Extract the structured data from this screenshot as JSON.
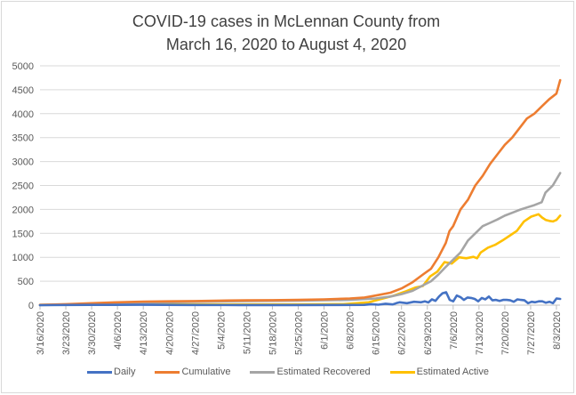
{
  "chart_data": {
    "type": "line",
    "title": [
      "COVID-19 cases in McLennan County from",
      "March 16, 2020 to August 4, 2020"
    ],
    "xlabel": "",
    "ylabel": "",
    "ylim": [
      0,
      5000
    ],
    "yticks": [
      0,
      500,
      1000,
      1500,
      2000,
      2500,
      3000,
      3500,
      4000,
      4500,
      5000
    ],
    "x_start": "3/16/2020",
    "x_end": "8/4/2020",
    "x_days": 141,
    "xtick_labels": [
      "3/16/2020",
      "3/23/2020",
      "3/30/2020",
      "4/6/2020",
      "4/13/2020",
      "4/20/2020",
      "4/27/2020",
      "5/4/2020",
      "5/11/2020",
      "5/18/2020",
      "5/25/2020",
      "6/1/2020",
      "6/8/2020",
      "6/15/2020",
      "6/22/2020",
      "6/29/2020",
      "7/6/2020",
      "7/13/2020",
      "7/20/2020",
      "7/27/2020",
      "8/3/2020"
    ],
    "grid": true,
    "legend_position": "bottom",
    "series": [
      {
        "name": "Daily",
        "color": "#4472c4",
        "points": [
          [
            0,
            0
          ],
          [
            14,
            5
          ],
          [
            28,
            8
          ],
          [
            42,
            3
          ],
          [
            56,
            2
          ],
          [
            70,
            2
          ],
          [
            84,
            4
          ],
          [
            91,
            6
          ],
          [
            93,
            20
          ],
          [
            95,
            10
          ],
          [
            97,
            30
          ],
          [
            99,
            15
          ],
          [
            100,
            40
          ],
          [
            101,
            60
          ],
          [
            103,
            40
          ],
          [
            105,
            70
          ],
          [
            107,
            60
          ],
          [
            108,
            80
          ],
          [
            109,
            55
          ],
          [
            110,
            120
          ],
          [
            111,
            90
          ],
          [
            112,
            180
          ],
          [
            113,
            250
          ],
          [
            114,
            270
          ],
          [
            115,
            110
          ],
          [
            116,
            80
          ],
          [
            117,
            200
          ],
          [
            118,
            170
          ],
          [
            119,
            110
          ],
          [
            120,
            160
          ],
          [
            121,
            150
          ],
          [
            122,
            130
          ],
          [
            123,
            80
          ],
          [
            124,
            150
          ],
          [
            125,
            120
          ],
          [
            126,
            180
          ],
          [
            127,
            100
          ],
          [
            128,
            110
          ],
          [
            129,
            90
          ],
          [
            130,
            110
          ],
          [
            131,
            110
          ],
          [
            132,
            100
          ],
          [
            133,
            70
          ],
          [
            134,
            120
          ],
          [
            135,
            110
          ],
          [
            136,
            100
          ],
          [
            137,
            40
          ],
          [
            138,
            70
          ],
          [
            139,
            60
          ],
          [
            140,
            80
          ],
          [
            141,
            80
          ],
          [
            142,
            50
          ],
          [
            143,
            70
          ],
          [
            144,
            40
          ],
          [
            145,
            140
          ],
          [
            146,
            130
          ]
        ]
      },
      {
        "name": "Cumulative",
        "color": "#ed7d31",
        "points": [
          [
            0,
            5
          ],
          [
            7,
            20
          ],
          [
            14,
            40
          ],
          [
            21,
            60
          ],
          [
            28,
            75
          ],
          [
            35,
            80
          ],
          [
            42,
            85
          ],
          [
            49,
            95
          ],
          [
            56,
            100
          ],
          [
            63,
            105
          ],
          [
            70,
            110
          ],
          [
            77,
            120
          ],
          [
            84,
            140
          ],
          [
            88,
            160
          ],
          [
            91,
            200
          ],
          [
            95,
            260
          ],
          [
            98,
            350
          ],
          [
            101,
            480
          ],
          [
            104,
            650
          ],
          [
            106,
            760
          ],
          [
            108,
            1000
          ],
          [
            110,
            1300
          ],
          [
            111,
            1550
          ],
          [
            112,
            1650
          ],
          [
            114,
            2000
          ],
          [
            116,
            2200
          ],
          [
            118,
            2500
          ],
          [
            120,
            2700
          ],
          [
            122,
            2950
          ],
          [
            124,
            3150
          ],
          [
            126,
            3350
          ],
          [
            128,
            3500
          ],
          [
            130,
            3700
          ],
          [
            132,
            3900
          ],
          [
            134,
            4000
          ],
          [
            136,
            4150
          ],
          [
            138,
            4300
          ],
          [
            140,
            4420
          ],
          [
            141,
            4700
          ]
        ]
      },
      {
        "name": "Estimated Recovered",
        "color": "#a5a5a5",
        "points": [
          [
            0,
            0
          ],
          [
            14,
            20
          ],
          [
            28,
            50
          ],
          [
            42,
            70
          ],
          [
            56,
            85
          ],
          [
            70,
            95
          ],
          [
            84,
            110
          ],
          [
            91,
            140
          ],
          [
            95,
            180
          ],
          [
            98,
            230
          ],
          [
            101,
            300
          ],
          [
            104,
            420
          ],
          [
            106,
            500
          ],
          [
            108,
            640
          ],
          [
            110,
            800
          ],
          [
            112,
            950
          ],
          [
            114,
            1100
          ],
          [
            116,
            1350
          ],
          [
            118,
            1500
          ],
          [
            120,
            1650
          ],
          [
            122,
            1720
          ],
          [
            124,
            1790
          ],
          [
            126,
            1870
          ],
          [
            128,
            1930
          ],
          [
            130,
            1990
          ],
          [
            132,
            2040
          ],
          [
            134,
            2090
          ],
          [
            136,
            2150
          ],
          [
            137,
            2350
          ],
          [
            139,
            2500
          ],
          [
            141,
            2760
          ]
        ]
      },
      {
        "name": "Estimated Active",
        "color": "#ffc000",
        "points": [
          [
            0,
            5
          ],
          [
            14,
            20
          ],
          [
            28,
            20
          ],
          [
            42,
            15
          ],
          [
            56,
            15
          ],
          [
            70,
            15
          ],
          [
            84,
            20
          ],
          [
            91,
            60
          ],
          [
            95,
            140
          ],
          [
            98,
            200
          ],
          [
            101,
            280
          ],
          [
            104,
            370
          ],
          [
            106,
            400
          ],
          [
            108,
            600
          ],
          [
            110,
            700
          ],
          [
            112,
            900
          ],
          [
            114,
            870
          ],
          [
            116,
            1000
          ],
          [
            118,
            980
          ],
          [
            120,
            1010
          ],
          [
            121,
            980
          ],
          [
            122,
            1100
          ],
          [
            124,
            1200
          ],
          [
            126,
            1260
          ],
          [
            128,
            1350
          ],
          [
            130,
            1450
          ],
          [
            132,
            1550
          ],
          [
            134,
            1750
          ],
          [
            136,
            1850
          ],
          [
            138,
            1900
          ],
          [
            139,
            1830
          ],
          [
            140,
            1780
          ],
          [
            141,
            1760
          ],
          [
            142,
            1750
          ],
          [
            143,
            1780
          ],
          [
            144,
            1870
          ]
        ]
      }
    ]
  }
}
